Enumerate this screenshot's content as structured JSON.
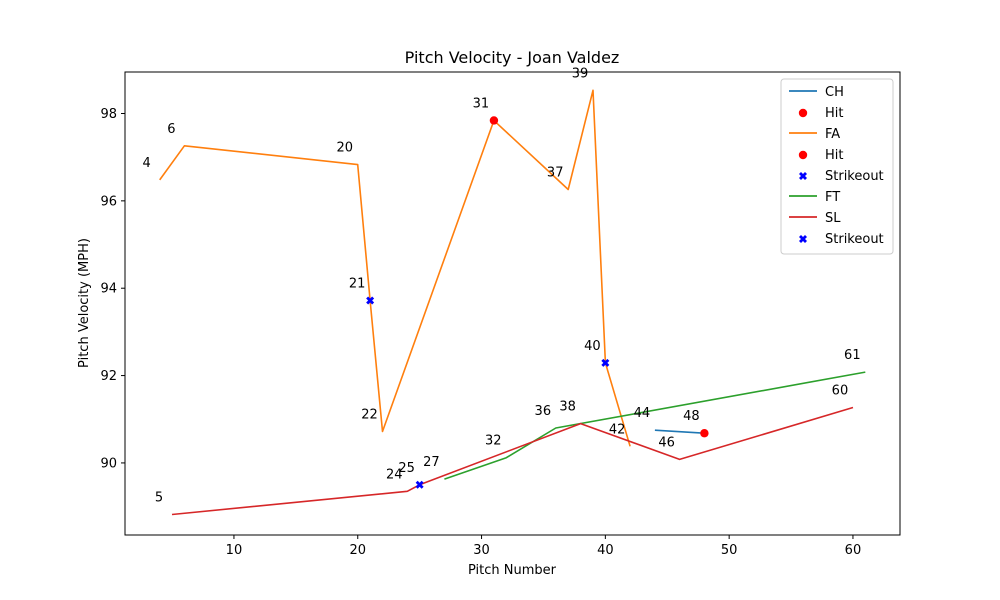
{
  "chart_data": {
    "type": "line",
    "title": "Pitch Velocity - Joan Valdez",
    "xlabel": "Pitch Number",
    "ylabel": "Pitch Velocity (MPH)",
    "xlim": [
      1.2,
      63.8
    ],
    "ylim": [
      88.35,
      98.95
    ],
    "xticks": [
      10,
      20,
      30,
      40,
      50,
      60
    ],
    "yticks": [
      90,
      92,
      94,
      96,
      98
    ],
    "grid": false,
    "legend_position": "top-right",
    "series": [
      {
        "name": "CH",
        "kind": "line",
        "color": "#1f77b4",
        "x": [
          44,
          48
        ],
        "y": [
          90.75,
          90.68
        ]
      },
      {
        "name": "Hit",
        "kind": "scatter",
        "marker": "circle",
        "color": "#ff0000",
        "x": [
          48
        ],
        "y": [
          90.68
        ]
      },
      {
        "name": "FA",
        "kind": "line",
        "color": "#ff7f0e",
        "x": [
          4,
          6,
          20,
          21,
          22,
          31,
          37,
          39,
          40,
          42
        ],
        "y": [
          96.48,
          97.26,
          96.83,
          93.72,
          90.72,
          97.84,
          96.26,
          98.53,
          92.29,
          90.38
        ]
      },
      {
        "name": "Hit",
        "kind": "scatter",
        "marker": "circle",
        "color": "#ff0000",
        "x": [
          31
        ],
        "y": [
          97.84
        ]
      },
      {
        "name": "Strikeout",
        "kind": "scatter",
        "marker": "x",
        "color": "#0000ff",
        "x": [
          21,
          40
        ],
        "y": [
          93.72,
          92.29
        ]
      },
      {
        "name": "FT",
        "kind": "line",
        "color": "#2ca02c",
        "x": [
          27,
          32,
          36,
          61
        ],
        "y": [
          89.63,
          90.12,
          90.8,
          92.08
        ]
      },
      {
        "name": "SL",
        "kind": "line",
        "color": "#d62728",
        "x": [
          5,
          24,
          25,
          38,
          46,
          60
        ],
        "y": [
          88.82,
          89.35,
          89.5,
          90.9,
          90.08,
          91.27
        ]
      },
      {
        "name": "Strikeout",
        "kind": "scatter",
        "marker": "x",
        "color": "#0000ff",
        "x": [
          25
        ],
        "y": [
          89.5
        ]
      }
    ],
    "annotations": [
      {
        "text": "4",
        "x": 4,
        "y": 96.48
      },
      {
        "text": "6",
        "x": 6,
        "y": 97.26
      },
      {
        "text": "20",
        "x": 20,
        "y": 96.83
      },
      {
        "text": "21",
        "x": 21,
        "y": 93.72
      },
      {
        "text": "22",
        "x": 22,
        "y": 90.72
      },
      {
        "text": "31",
        "x": 31,
        "y": 97.84
      },
      {
        "text": "37",
        "x": 37,
        "y": 96.26
      },
      {
        "text": "39",
        "x": 39,
        "y": 98.53
      },
      {
        "text": "40",
        "x": 40,
        "y": 92.29
      },
      {
        "text": "42",
        "x": 42,
        "y": 90.38
      },
      {
        "text": "5",
        "x": 5,
        "y": 88.82
      },
      {
        "text": "24",
        "x": 24,
        "y": 89.35
      },
      {
        "text": "25",
        "x": 25,
        "y": 89.5
      },
      {
        "text": "27",
        "x": 27,
        "y": 89.63
      },
      {
        "text": "32",
        "x": 32,
        "y": 90.12
      },
      {
        "text": "36",
        "x": 36,
        "y": 90.8
      },
      {
        "text": "38",
        "x": 38,
        "y": 90.9
      },
      {
        "text": "44",
        "x": 44,
        "y": 90.75
      },
      {
        "text": "46",
        "x": 46,
        "y": 90.08
      },
      {
        "text": "48",
        "x": 48,
        "y": 90.68
      },
      {
        "text": "60",
        "x": 60,
        "y": 91.27
      },
      {
        "text": "61",
        "x": 61,
        "y": 92.08
      }
    ]
  }
}
